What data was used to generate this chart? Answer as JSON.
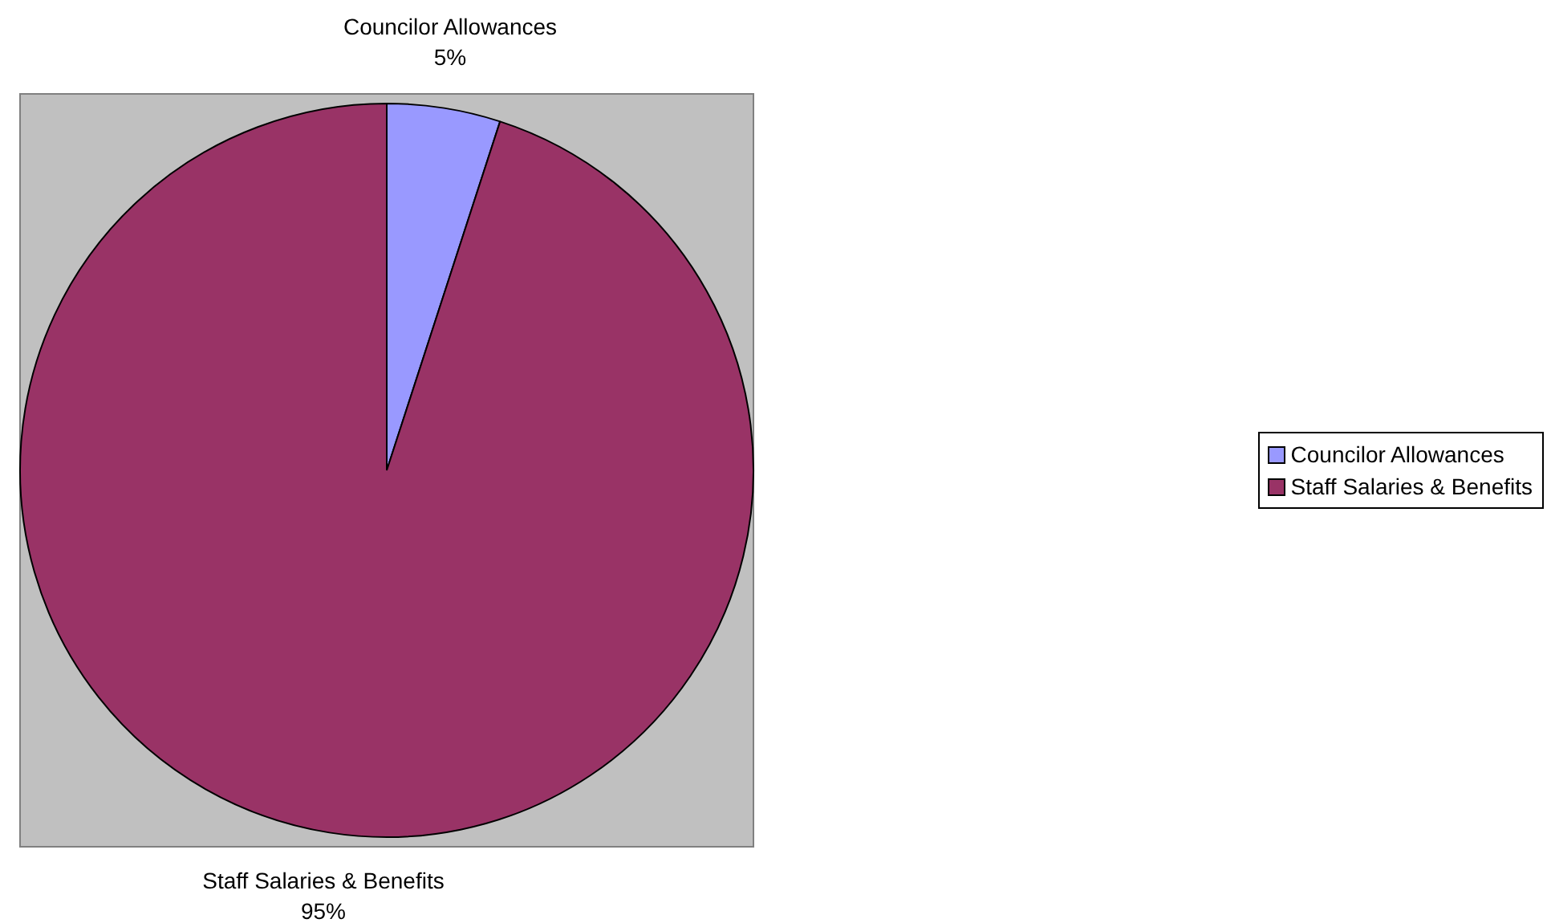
{
  "chart_data": {
    "type": "pie",
    "categories": [
      "Councilor Allowances",
      "Staff Salaries & Benefits"
    ],
    "values": [
      5,
      95
    ],
    "colors": [
      "#9999ff",
      "#993366"
    ],
    "value_labels": [
      "5%",
      "95%"
    ],
    "legend": "right"
  }
}
